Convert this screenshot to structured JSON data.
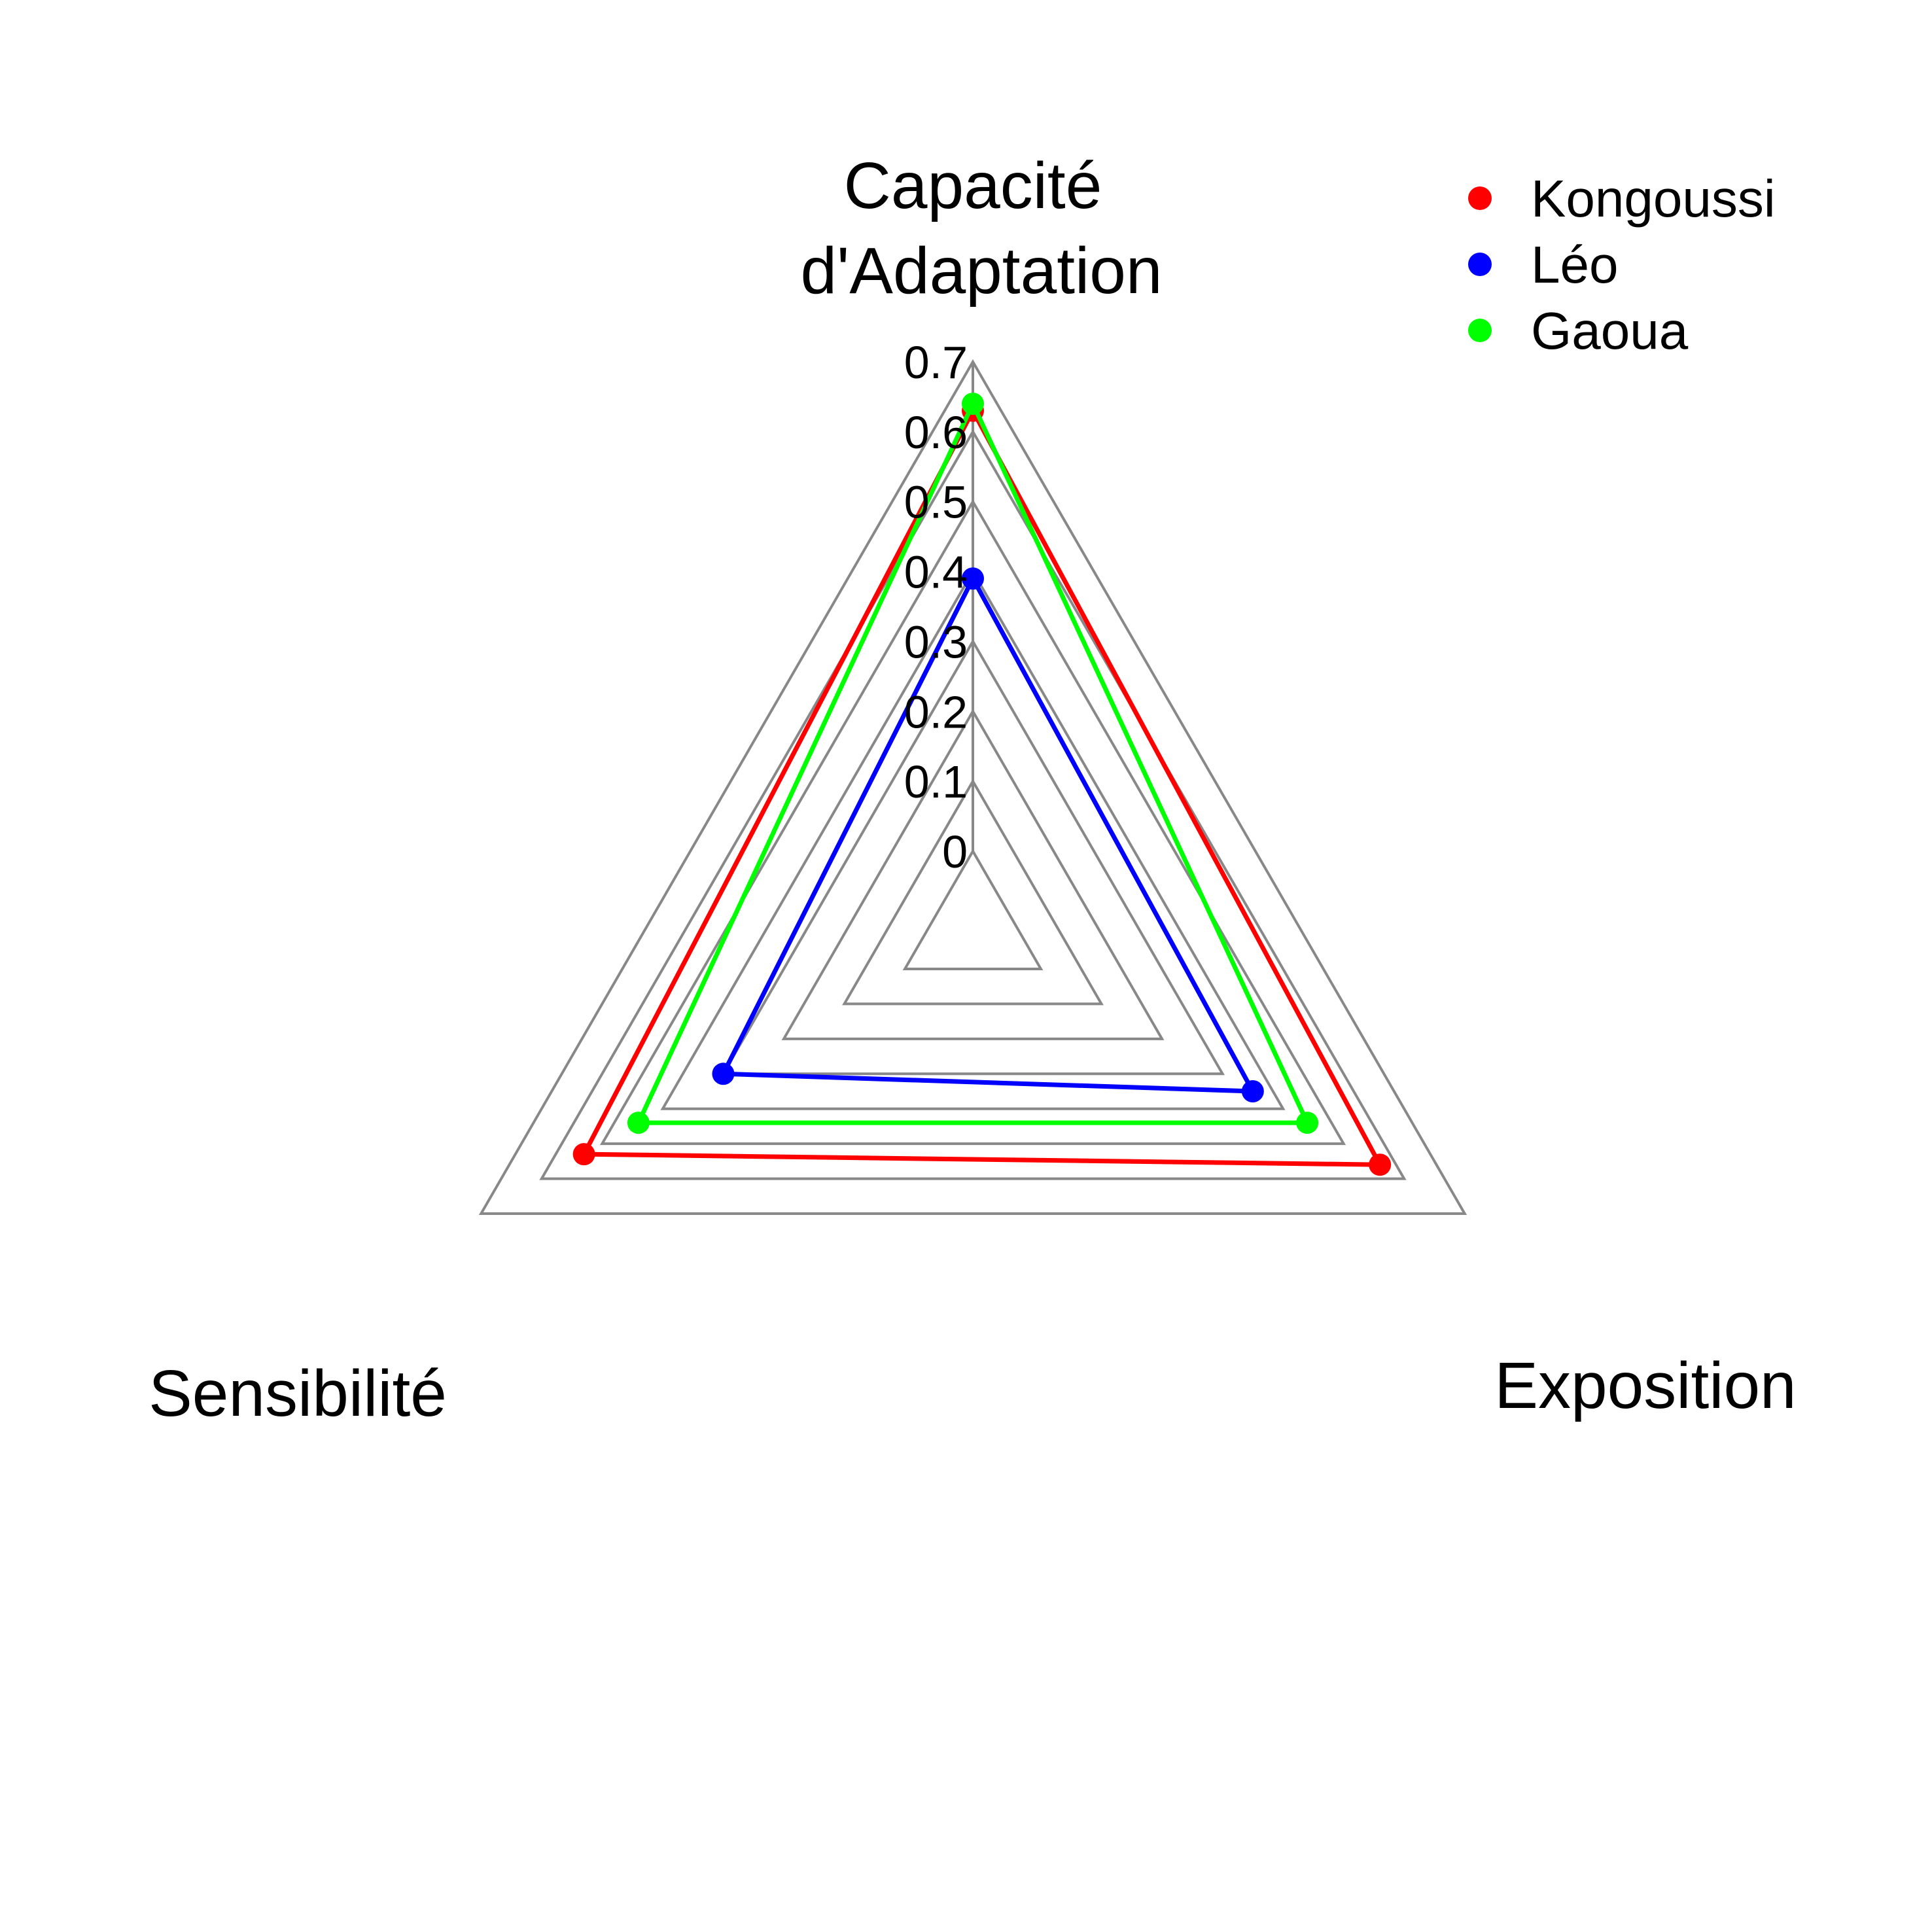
{
  "chart_data": {
    "type": "radar",
    "axes": [
      {
        "label_lines": [
          "Capacité",
          "d'Adaptation"
        ]
      },
      {
        "label_lines": [
          "Exposition"
        ]
      },
      {
        "label_lines": [
          "Sensibilité"
        ]
      }
    ],
    "ticks": [
      "0",
      "0.1",
      "0.2",
      "0.3",
      "0.4",
      "0.5",
      "0.6",
      "0.7"
    ],
    "range": [
      0,
      0.7
    ],
    "grid_color": "#888888",
    "series": [
      {
        "name": "Kongoussi",
        "color": "#ff0000",
        "values": [
          0.63,
          0.56,
          0.53
        ]
      },
      {
        "name": "Léo",
        "color": "#0000ff",
        "values": [
          0.39,
          0.35,
          0.3
        ]
      },
      {
        "name": "Gaoua",
        "color": "#00ff00",
        "values": [
          0.64,
          0.44,
          0.44
        ]
      }
    ],
    "legend_position": "top-right"
  }
}
